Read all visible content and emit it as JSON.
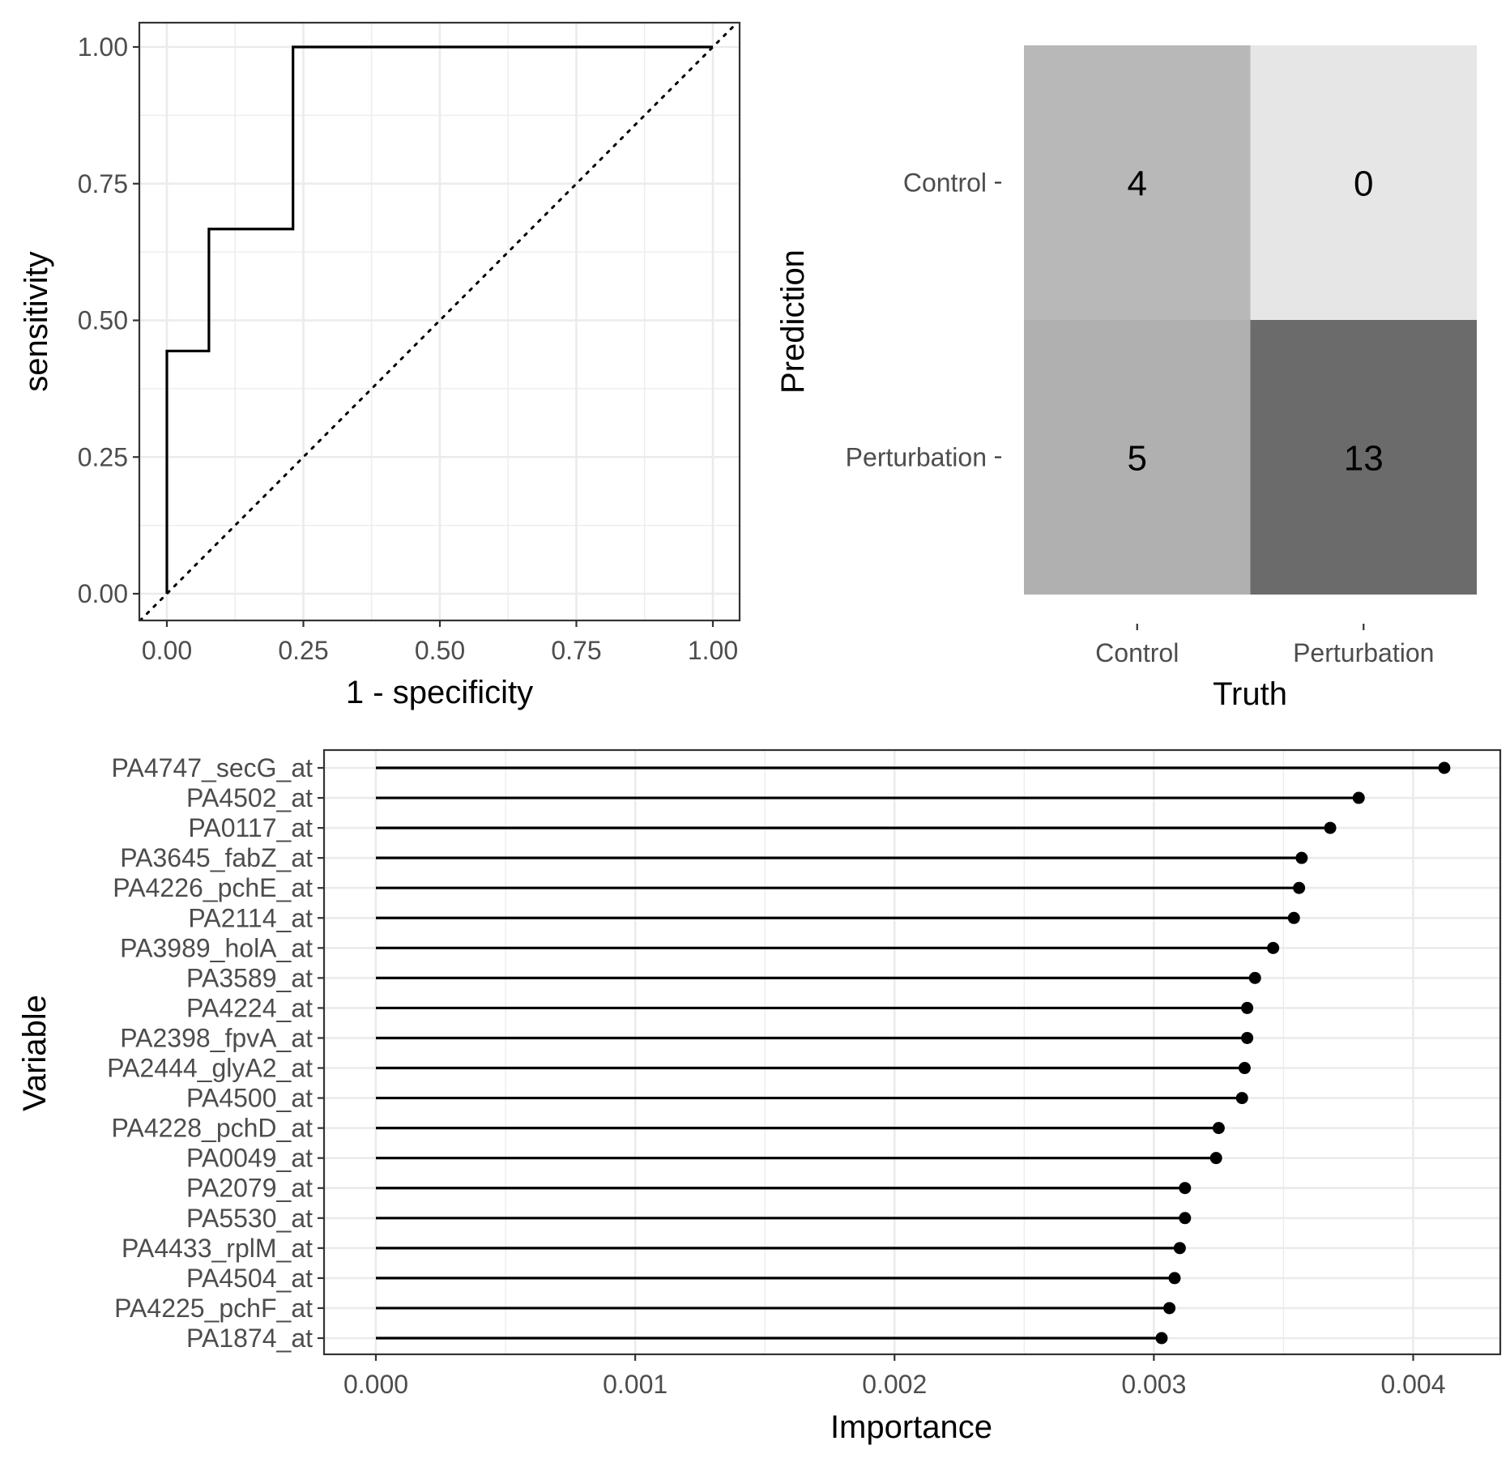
{
  "chart_data": [
    {
      "type": "line",
      "name": "roc-curve",
      "xlabel": "1 - specificity",
      "ylabel": "sensitivity",
      "xlim": [
        0,
        1
      ],
      "ylim": [
        0,
        1
      ],
      "x_ticks": [
        "0.00",
        "0.25",
        "0.50",
        "0.75",
        "1.00"
      ],
      "y_ticks": [
        "0.00",
        "0.25",
        "0.50",
        "0.75",
        "1.00"
      ],
      "grid": true,
      "reference_line": "diagonal (dotted)",
      "x": [
        0,
        0,
        0.077,
        0.077,
        0.231,
        0.231,
        1
      ],
      "y": [
        0,
        0.444,
        0.444,
        0.667,
        0.667,
        1,
        1
      ]
    },
    {
      "type": "heatmap",
      "name": "confusion-matrix",
      "xlabel": "Truth",
      "ylabel": "Prediction",
      "x_categories": [
        "Control",
        "Perturbation"
      ],
      "y_categories": [
        "Control",
        "Perturbation"
      ],
      "cells": [
        {
          "truth": "Control",
          "prediction": "Control",
          "value": 4,
          "color": "#b8b8b8"
        },
        {
          "truth": "Perturbation",
          "prediction": "Control",
          "value": 0,
          "color": "#e6e6e6"
        },
        {
          "truth": "Control",
          "prediction": "Perturbation",
          "value": 5,
          "color": "#b0b0b0"
        },
        {
          "truth": "Perturbation",
          "prediction": "Perturbation",
          "value": 13,
          "color": "#6b6b6b"
        }
      ]
    },
    {
      "type": "scatter",
      "name": "variable-importance",
      "xlabel": "Importance",
      "ylabel": "Variable",
      "xlim": [
        0,
        0.0042
      ],
      "x_ticks": [
        "0.000",
        "0.001",
        "0.002",
        "0.003",
        "0.004"
      ],
      "grid": true,
      "style": "lollipop",
      "variables": [
        "PA4747_secG_at",
        "PA4502_at",
        "PA0117_at",
        "PA3645_fabZ_at",
        "PA4226_pchE_at",
        "PA2114_at",
        "PA3989_holA_at",
        "PA3589_at",
        "PA4224_at",
        "PA2398_fpvA_at",
        "PA2444_glyA2_at",
        "PA4500_at",
        "PA4228_pchD_at",
        "PA0049_at",
        "PA2079_at",
        "PA5530_at",
        "PA4433_rplM_at",
        "PA4504_at",
        "PA4225_pchF_at",
        "PA1874_at"
      ],
      "values": [
        0.00412,
        0.00379,
        0.00368,
        0.00357,
        0.00356,
        0.00354,
        0.00346,
        0.00339,
        0.00336,
        0.00336,
        0.00335,
        0.00334,
        0.00325,
        0.00324,
        0.00312,
        0.00312,
        0.0031,
        0.00308,
        0.00306,
        0.00303
      ]
    }
  ]
}
